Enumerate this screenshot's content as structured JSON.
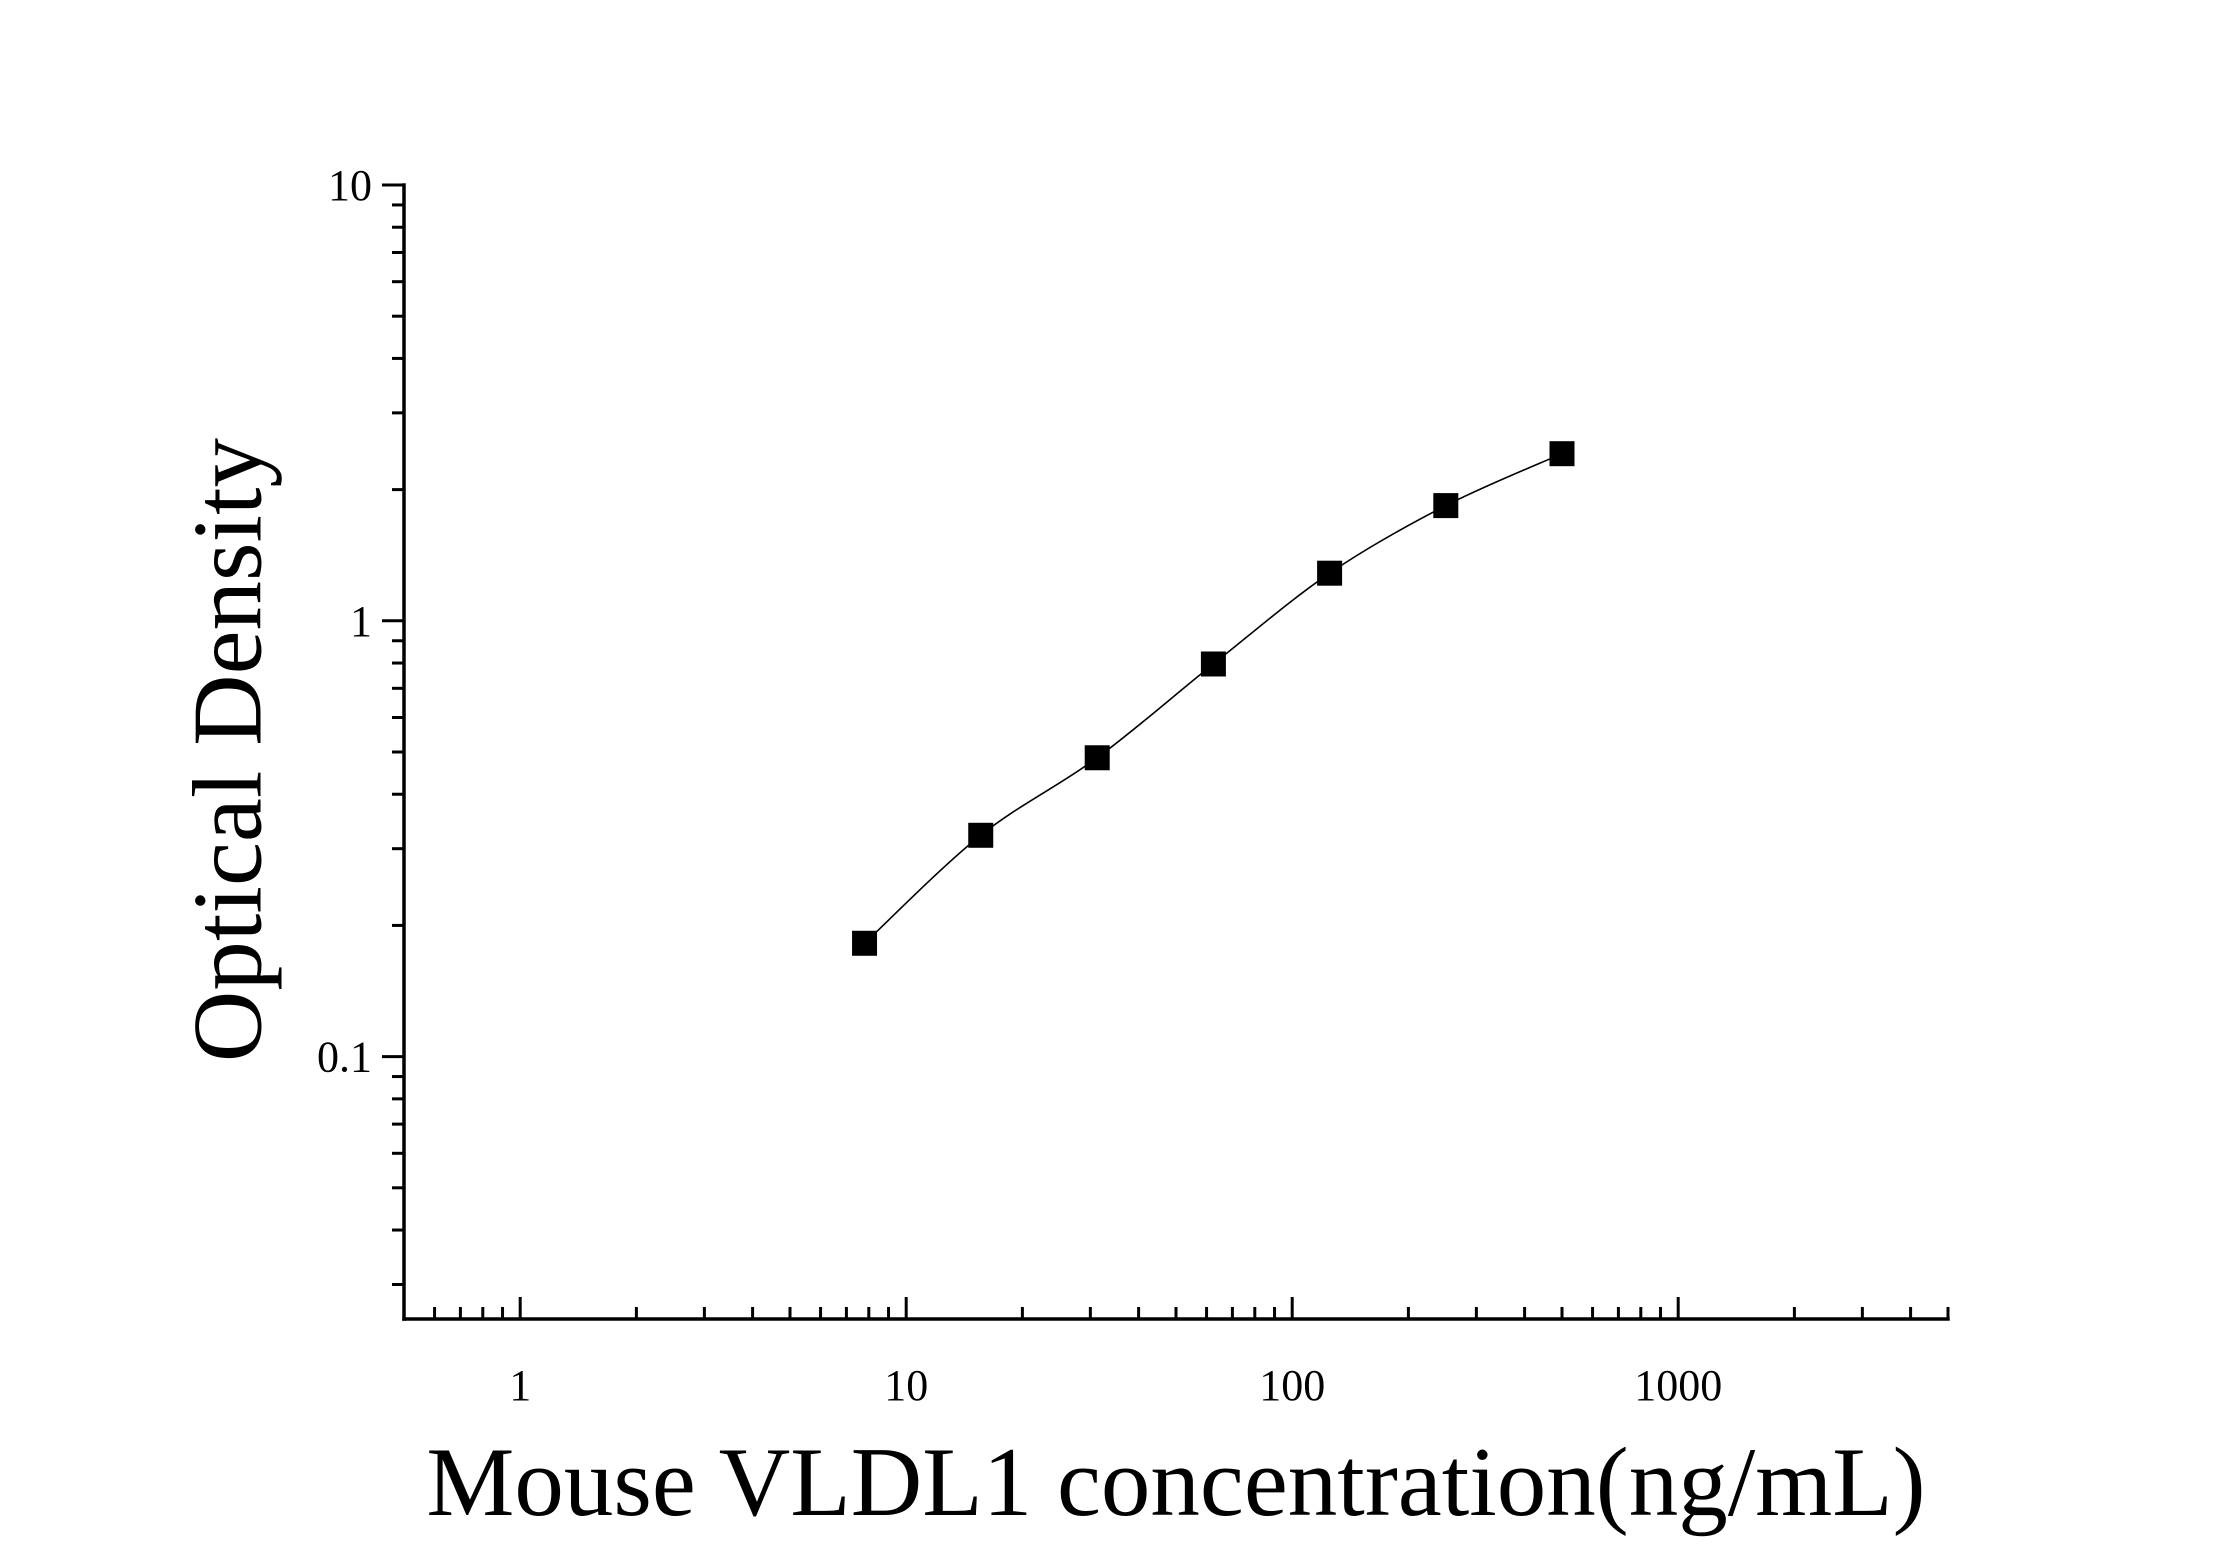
{
  "chart_data": {
    "type": "scatter",
    "title": "",
    "xlabel": "Mouse VLDL1 concentration(ng/mL)",
    "ylabel": "Optical Density",
    "xscale": "log",
    "yscale": "log",
    "xlim": [
      0.5,
      5000
    ],
    "ylim": [
      0.025,
      10
    ],
    "xticks": [
      {
        "value": 1,
        "label": "1"
      },
      {
        "value": 10,
        "label": "10"
      },
      {
        "value": 100,
        "label": "100"
      },
      {
        "value": 1000,
        "label": "1000"
      }
    ],
    "yticks": [
      {
        "value": 0.1,
        "label": "0.1"
      },
      {
        "value": 1,
        "label": "1"
      },
      {
        "value": 10,
        "label": "10"
      }
    ],
    "grid": false,
    "legend": "none",
    "series": [
      {
        "x": [
          7.8,
          15.6,
          31.25,
          62.5,
          125,
          250,
          500
        ],
        "y": [
          0.182,
          0.322,
          0.485,
          0.796,
          1.286,
          1.838,
          2.418
        ],
        "marker": "square",
        "color": "#000000",
        "fit_curve": true
      }
    ]
  },
  "colors": {
    "background": "#ffffff",
    "axis": "#000000",
    "series": "#000000"
  }
}
